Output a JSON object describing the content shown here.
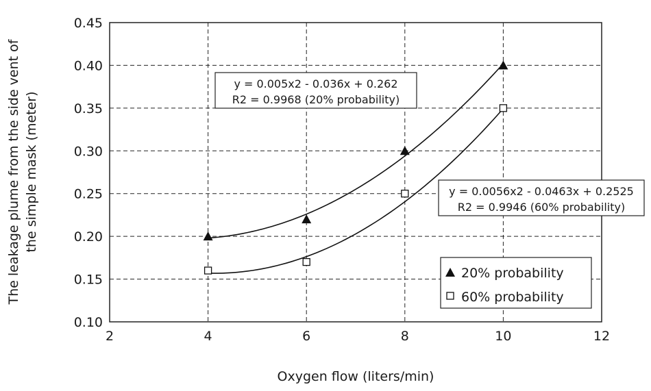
{
  "chart_data": {
    "type": "scatter",
    "xlabel": "Oxygen flow (liters/min)",
    "ylabel_lines": [
      "The leakage plume from the side vent of",
      "the simple mask (meter)"
    ],
    "xlim": [
      2,
      12
    ],
    "ylim": [
      0.1,
      0.45
    ],
    "x_ticks": [
      "2",
      "4",
      "6",
      "8",
      "10",
      "12"
    ],
    "y_ticks": [
      "0.10",
      "0.15",
      "0.20",
      "0.25",
      "0.30",
      "0.35",
      "0.40",
      "0.45"
    ],
    "grid": true,
    "legend_position": "bottom-right",
    "series": [
      {
        "name": "20% probability",
        "marker": "filled-triangle",
        "x": [
          4,
          6,
          8,
          10
        ],
        "y": [
          0.2,
          0.22,
          0.3,
          0.4
        ],
        "trendline": {
          "type": "polynomial-2",
          "a": 0.005,
          "b": -0.036,
          "c": 0.262
        }
      },
      {
        "name": "60% probability",
        "marker": "open-square",
        "x": [
          4,
          6,
          8,
          10
        ],
        "y": [
          0.16,
          0.17,
          0.25,
          0.35
        ],
        "trendline": {
          "type": "polynomial-2",
          "a": 0.0056,
          "b": -0.0463,
          "c": 0.2525
        }
      }
    ],
    "annotations": [
      {
        "lines": [
          "y = 0.005x2 - 0.036x + 0.262",
          "R2 = 0.9968 (20% probability)"
        ]
      },
      {
        "lines": [
          "y = 0.0056x2 - 0.0463x + 0.2525",
          "R2 = 0.9946 (60% probability)"
        ]
      }
    ]
  }
}
